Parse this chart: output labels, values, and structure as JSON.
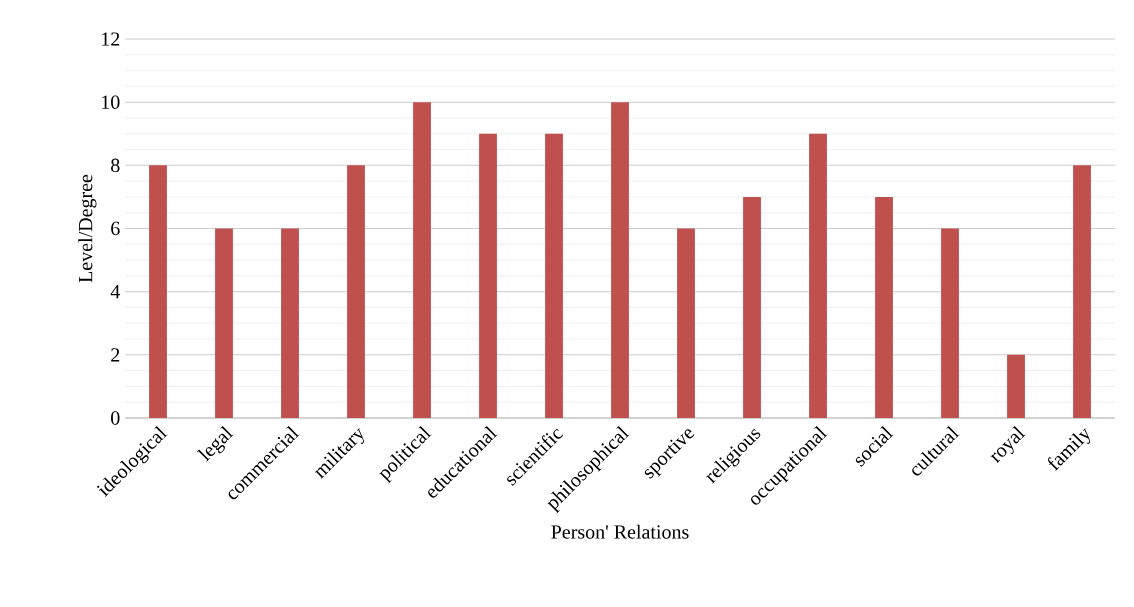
{
  "chart_data": {
    "type": "bar",
    "xlabel": "Person' Relations",
    "ylabel": "Level/Degree",
    "categories": [
      "ideological",
      "legal",
      "commercial",
      "military",
      "political",
      "educational",
      "scientific",
      "philosophical",
      "sportive",
      "religious",
      "occupational",
      "social",
      "cultural",
      "royal",
      "family"
    ],
    "values": [
      8,
      6,
      6,
      8,
      10,
      9,
      9,
      10,
      6,
      7,
      9,
      7,
      6,
      2,
      8
    ],
    "color": "#c0504d",
    "ylim": [
      0,
      12
    ],
    "yticks": [
      0,
      {
        "value": 0.5,
        "label": null
      },
      {
        "value": 1,
        "label": null
      },
      {
        "value": 1.5,
        "label": null
      },
      2,
      {
        "value": 2.5,
        "label": null
      },
      {
        "value": 3,
        "label": null
      },
      {
        "value": 3.5,
        "label": null
      },
      4,
      {
        "value": 4.5,
        "label": null
      },
      {
        "value": 5,
        "label": null
      },
      {
        "value": 5.5,
        "label": null
      },
      6,
      {
        "value": 6.5,
        "label": null
      },
      {
        "value": 7,
        "label": null
      },
      {
        "value": 7.5,
        "label": null
      },
      8,
      {
        "value": 8.5,
        "label": null
      },
      {
        "value": 9,
        "label": null
      },
      {
        "value": 9.5,
        "label": null
      },
      10,
      {
        "value": 10.5,
        "label": null
      },
      {
        "value": 11,
        "label": null
      },
      {
        "value": 11.5,
        "label": null
      },
      12
    ],
    "grid": true
  }
}
